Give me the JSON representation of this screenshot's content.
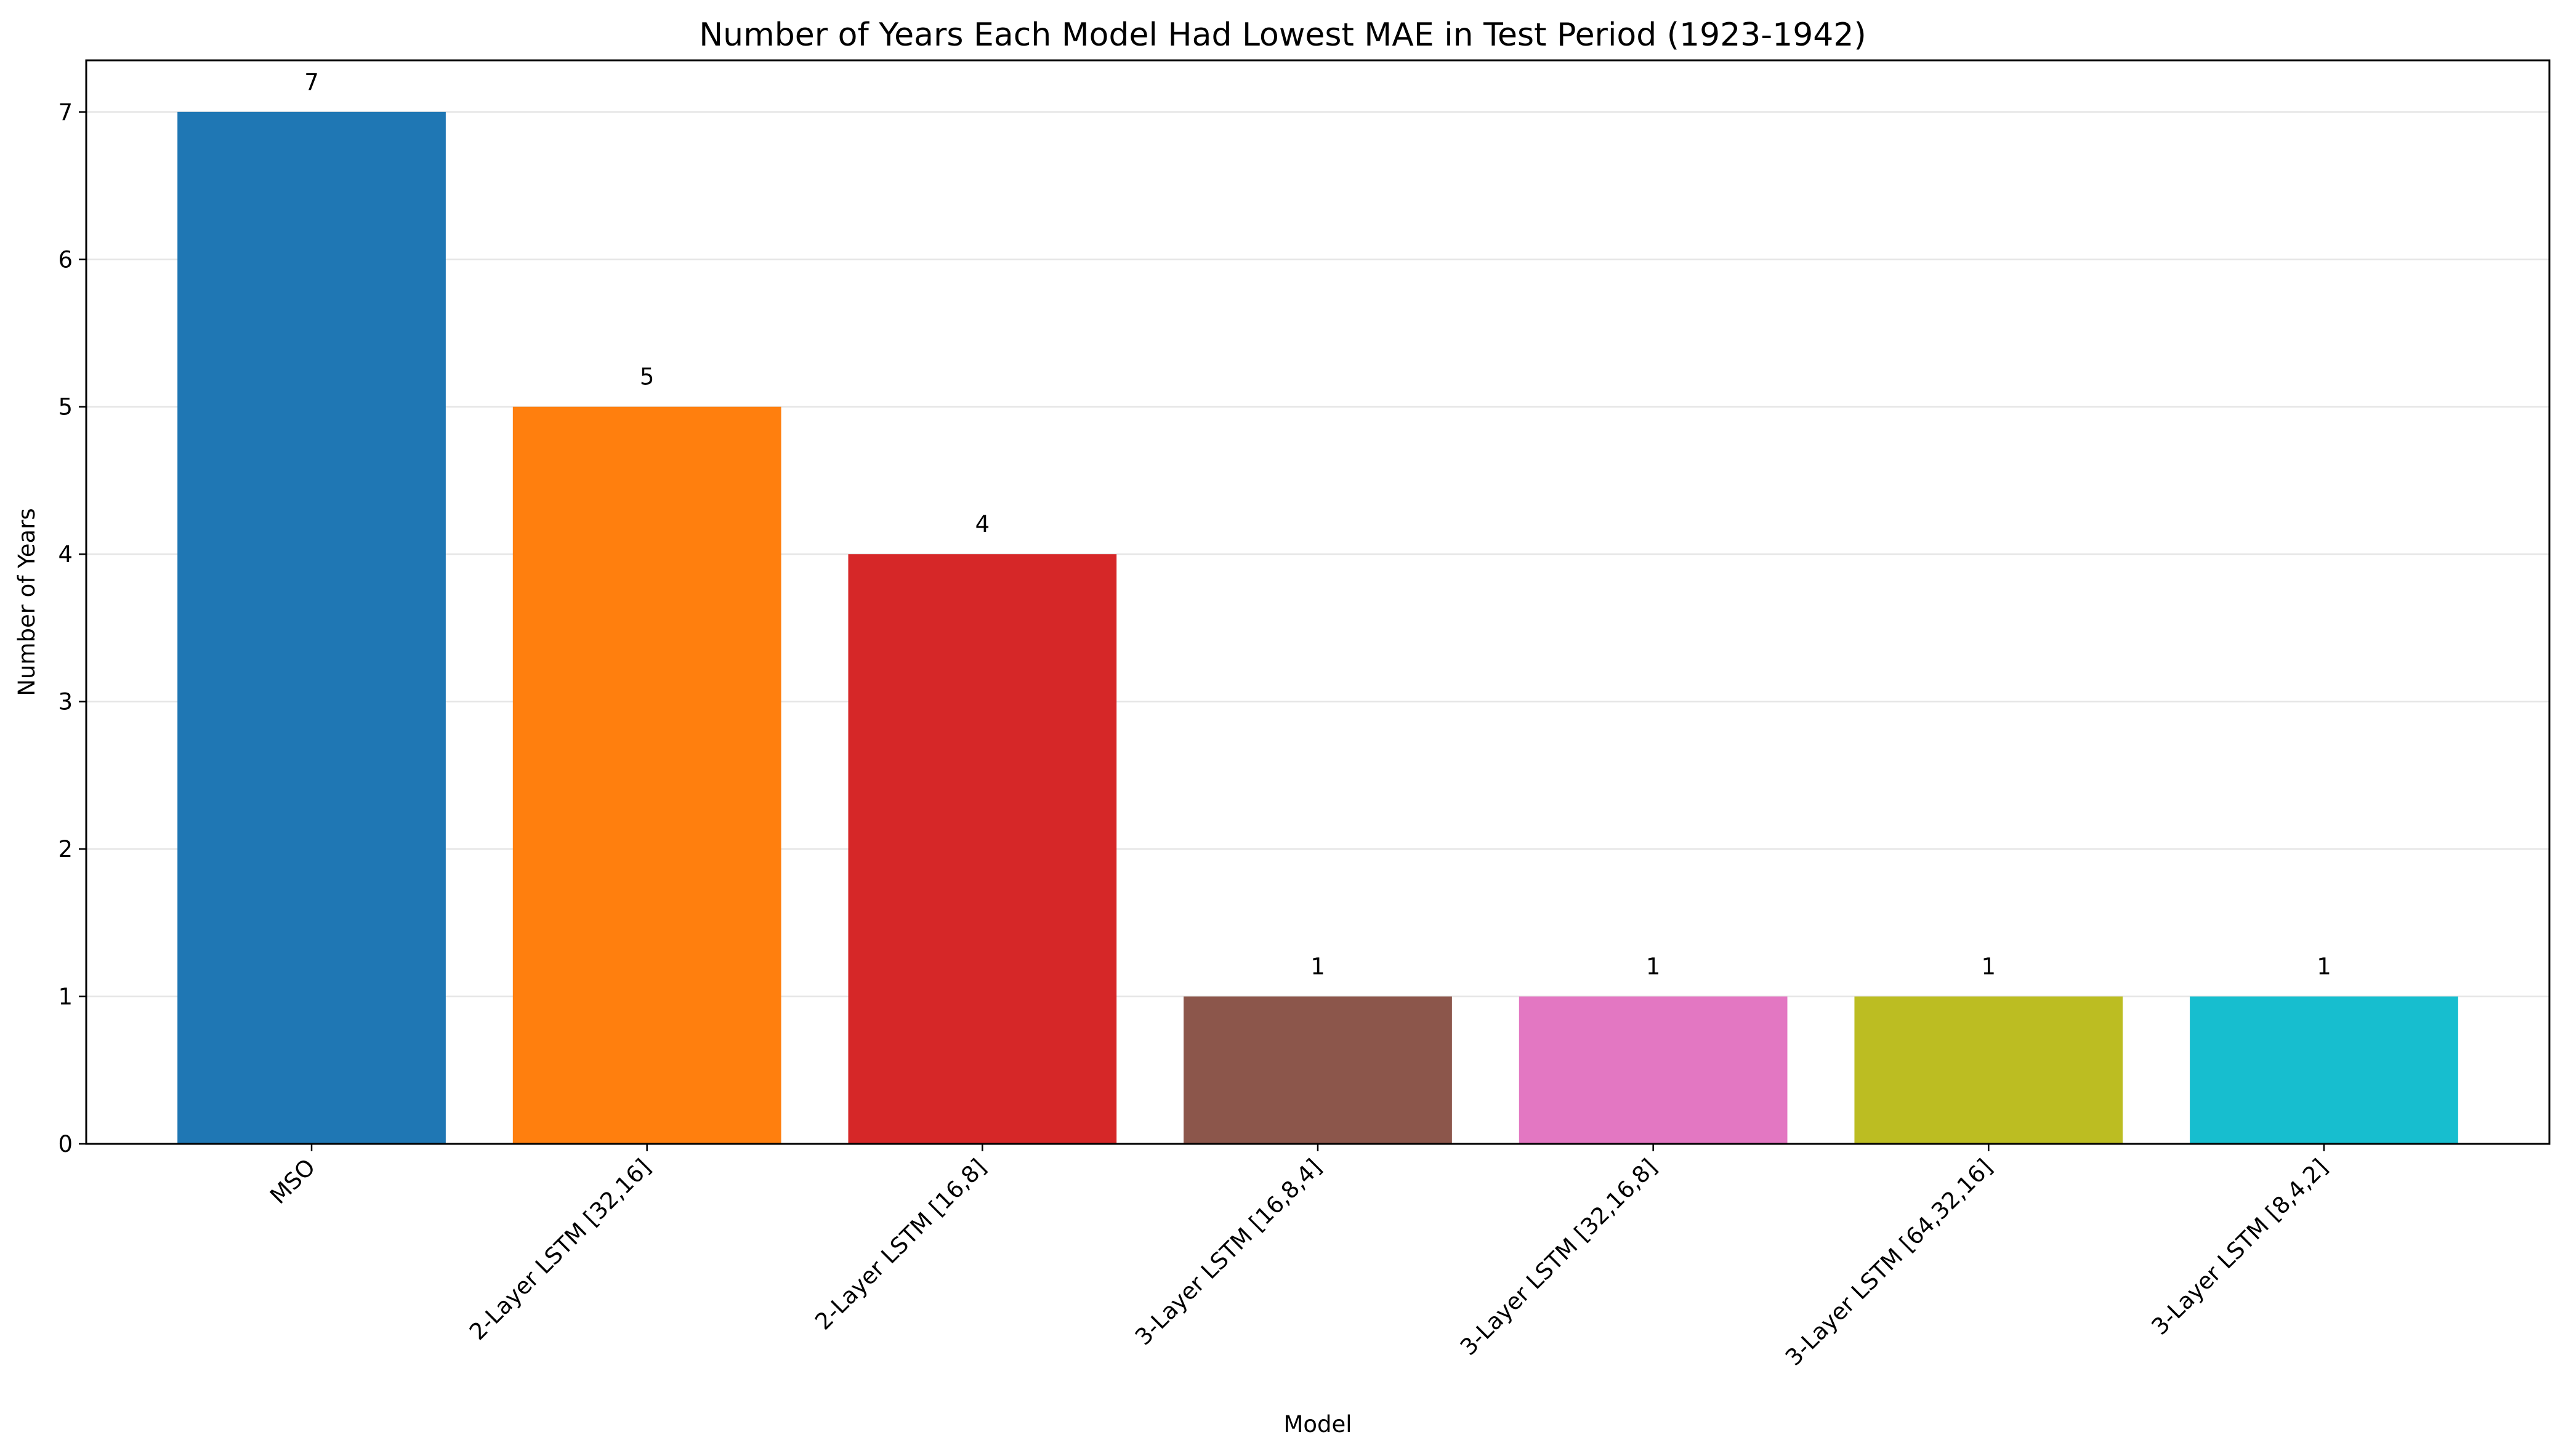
{
  "chart_data": {
    "type": "bar",
    "title": "Number of Years Each Model Had Lowest MAE in Test Period (1923-1942)",
    "xlabel": "Model",
    "ylabel": "Number of Years",
    "categories": [
      "MSO",
      "2-Layer LSTM [32,16]",
      "2-Layer LSTM [16,8]",
      "3-Layer LSTM [16,8,4]",
      "3-Layer LSTM [32,16,8]",
      "3-Layer LSTM [64,32,16]",
      "3-Layer LSTM [8,4,2]"
    ],
    "values": [
      7,
      5,
      4,
      1,
      1,
      1,
      1
    ],
    "data_labels": [
      "7",
      "5",
      "4",
      "1",
      "1",
      "1",
      "1"
    ],
    "colors": [
      "#1f77b4",
      "#ff7f0e",
      "#d62728",
      "#8c564b",
      "#e377c2",
      "#bcbd22",
      "#17becf"
    ],
    "yticks": [
      "0",
      "1",
      "2",
      "3",
      "4",
      "5",
      "6",
      "7"
    ],
    "ylim": [
      0,
      7.35
    ],
    "grid": "y-only",
    "legend": "none"
  }
}
